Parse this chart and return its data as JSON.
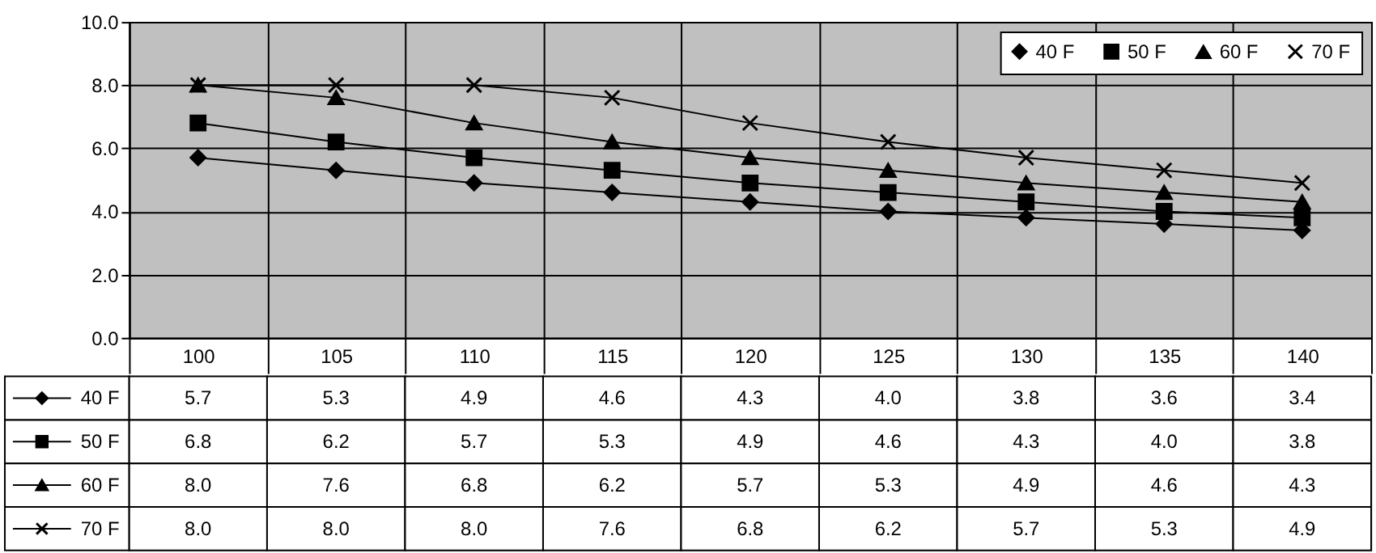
{
  "chart_data": {
    "type": "line",
    "categories": [
      "100",
      "105",
      "110",
      "115",
      "120",
      "125",
      "130",
      "135",
      "140"
    ],
    "series": [
      {
        "name": "40 F",
        "color": "#000000",
        "marker": "diamond",
        "values": [
          5.7,
          5.3,
          4.9,
          4.6,
          4.3,
          4.0,
          3.8,
          3.6,
          3.4
        ],
        "value_labels": [
          "5.7",
          "5.3",
          "4.9",
          "4.6",
          "4.3",
          "4.0",
          "3.8",
          "3.6",
          "3.4"
        ]
      },
      {
        "name": "50 F",
        "color": "#000000",
        "marker": "square",
        "values": [
          6.8,
          6.2,
          5.7,
          5.3,
          4.9,
          4.6,
          4.3,
          4.0,
          3.8
        ],
        "value_labels": [
          "6.8",
          "6.2",
          "5.7",
          "5.3",
          "4.9",
          "4.6",
          "4.3",
          "4.0",
          "3.8"
        ]
      },
      {
        "name": "60 F",
        "color": "#000000",
        "marker": "triangle",
        "values": [
          8.0,
          7.6,
          6.8,
          6.2,
          5.7,
          5.3,
          4.9,
          4.6,
          4.3
        ],
        "value_labels": [
          "8.0",
          "7.6",
          "6.8",
          "6.2",
          "5.7",
          "5.3",
          "4.9",
          "4.6",
          "4.3"
        ]
      },
      {
        "name": "70 F",
        "color": "#000000",
        "marker": "cross",
        "values": [
          8.0,
          8.0,
          8.0,
          7.6,
          6.8,
          6.2,
          5.7,
          5.3,
          4.9
        ],
        "value_labels": [
          "8.0",
          "8.0",
          "8.0",
          "7.6",
          "6.8",
          "6.2",
          "5.7",
          "5.3",
          "4.9"
        ]
      }
    ],
    "ylim": [
      0,
      10
    ],
    "yticks": [
      {
        "value": 0,
        "label": "0.0"
      },
      {
        "value": 2,
        "label": "2.0"
      },
      {
        "value": 4,
        "label": "4.0"
      },
      {
        "value": 6,
        "label": "6.0"
      },
      {
        "value": 8,
        "label": "8.0"
      },
      {
        "value": 10,
        "label": "10.0"
      }
    ],
    "grid": true,
    "legend": "top right",
    "line_style": "solid"
  }
}
